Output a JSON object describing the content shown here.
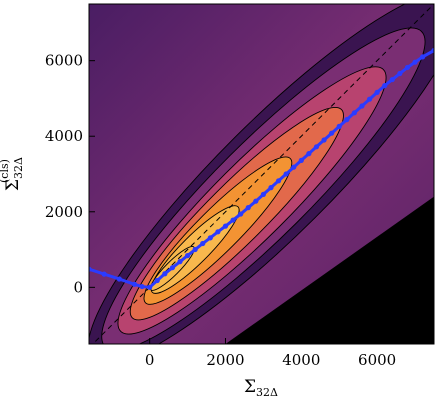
{
  "chart_data": {
    "type": "heatmap",
    "subtype": "filled contour density with overlaid line",
    "xlabel": "Σ",
    "xlabel_sub": "32Δ",
    "ylabel": "Σ",
    "ylabel_sub": "32Δ",
    "ylabel_sup": "(cls)",
    "xlim": [
      -1600,
      7500
    ],
    "ylim": [
      -1500,
      7500
    ],
    "x_ticks": [
      0,
      2000,
      4000,
      6000
    ],
    "y_ticks": [
      0,
      2000,
      4000,
      6000
    ],
    "x_tick_labels": [
      "0",
      "2000",
      "4000",
      "6000"
    ],
    "y_tick_labels": [
      "0",
      "2000",
      "4000",
      "6000"
    ],
    "colormap": [
      "#000000",
      "#3a1450",
      "#7a2e73",
      "#b8436f",
      "#e2694b",
      "#f39333",
      "#f8b84d"
    ],
    "reference_line": {
      "style": "dashed",
      "color": "#000000",
      "slope": 1,
      "intercept": 0
    },
    "series": [
      {
        "color": "#2b3bff",
        "x": [
          -1600,
          -1200,
          -800,
          -400,
          -200,
          0,
          200,
          400,
          600,
          800,
          1000,
          1200,
          1400,
          1600,
          1800,
          2000,
          2200,
          2400,
          2600,
          2800,
          3000,
          3200,
          3400,
          3600,
          3800,
          4000,
          4200,
          4400,
          4600,
          4800,
          5000,
          5200,
          5400,
          5600,
          5800,
          6000,
          6200,
          6400,
          6600,
          6800,
          7000,
          7200,
          7500
        ],
        "y": [
          480,
          350,
          220,
          80,
          20,
          0,
          180,
          360,
          520,
          680,
          840,
          1000,
          1160,
          1310,
          1470,
          1620,
          1780,
          1940,
          2110,
          2280,
          2460,
          2640,
          2820,
          3000,
          3180,
          3360,
          3540,
          3720,
          3900,
          4080,
          4260,
          4440,
          4620,
          4800,
          4980,
          5160,
          5340,
          5500,
          5660,
          5820,
          5960,
          6100,
          6270
        ]
      }
    ]
  }
}
